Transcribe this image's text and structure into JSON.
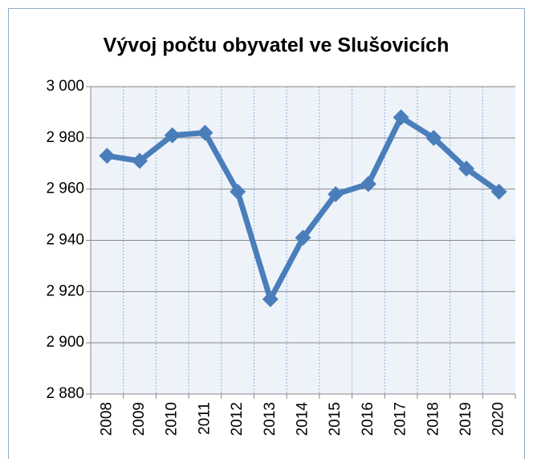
{
  "chart_data": {
    "type": "line",
    "title": "Vývoj počtu obyvatel ve Slušovicích",
    "categories": [
      "2008",
      "2009",
      "2010",
      "2011",
      "2012",
      "2013",
      "2014",
      "2015",
      "2016",
      "2017",
      "2018",
      "2019",
      "2020"
    ],
    "series": [
      {
        "color": "#4a7ebb",
        "values": [
          2973,
          2971,
          2981,
          2982,
          2959,
          2917,
          2941,
          2958,
          2962,
          2988,
          2980,
          2968,
          2959
        ]
      }
    ],
    "ylim": [
      2880,
      3000
    ],
    "yticks": [
      {
        "value": 2880,
        "label": "2 880"
      },
      {
        "value": 2900,
        "label": "2 900"
      },
      {
        "value": 2920,
        "label": "2 920"
      },
      {
        "value": 2940,
        "label": "2 940"
      },
      {
        "value": 2960,
        "label": "2 960"
      },
      {
        "value": 2980,
        "label": "2 980"
      },
      {
        "value": 3000,
        "label": "3 000"
      }
    ],
    "grid": true
  }
}
